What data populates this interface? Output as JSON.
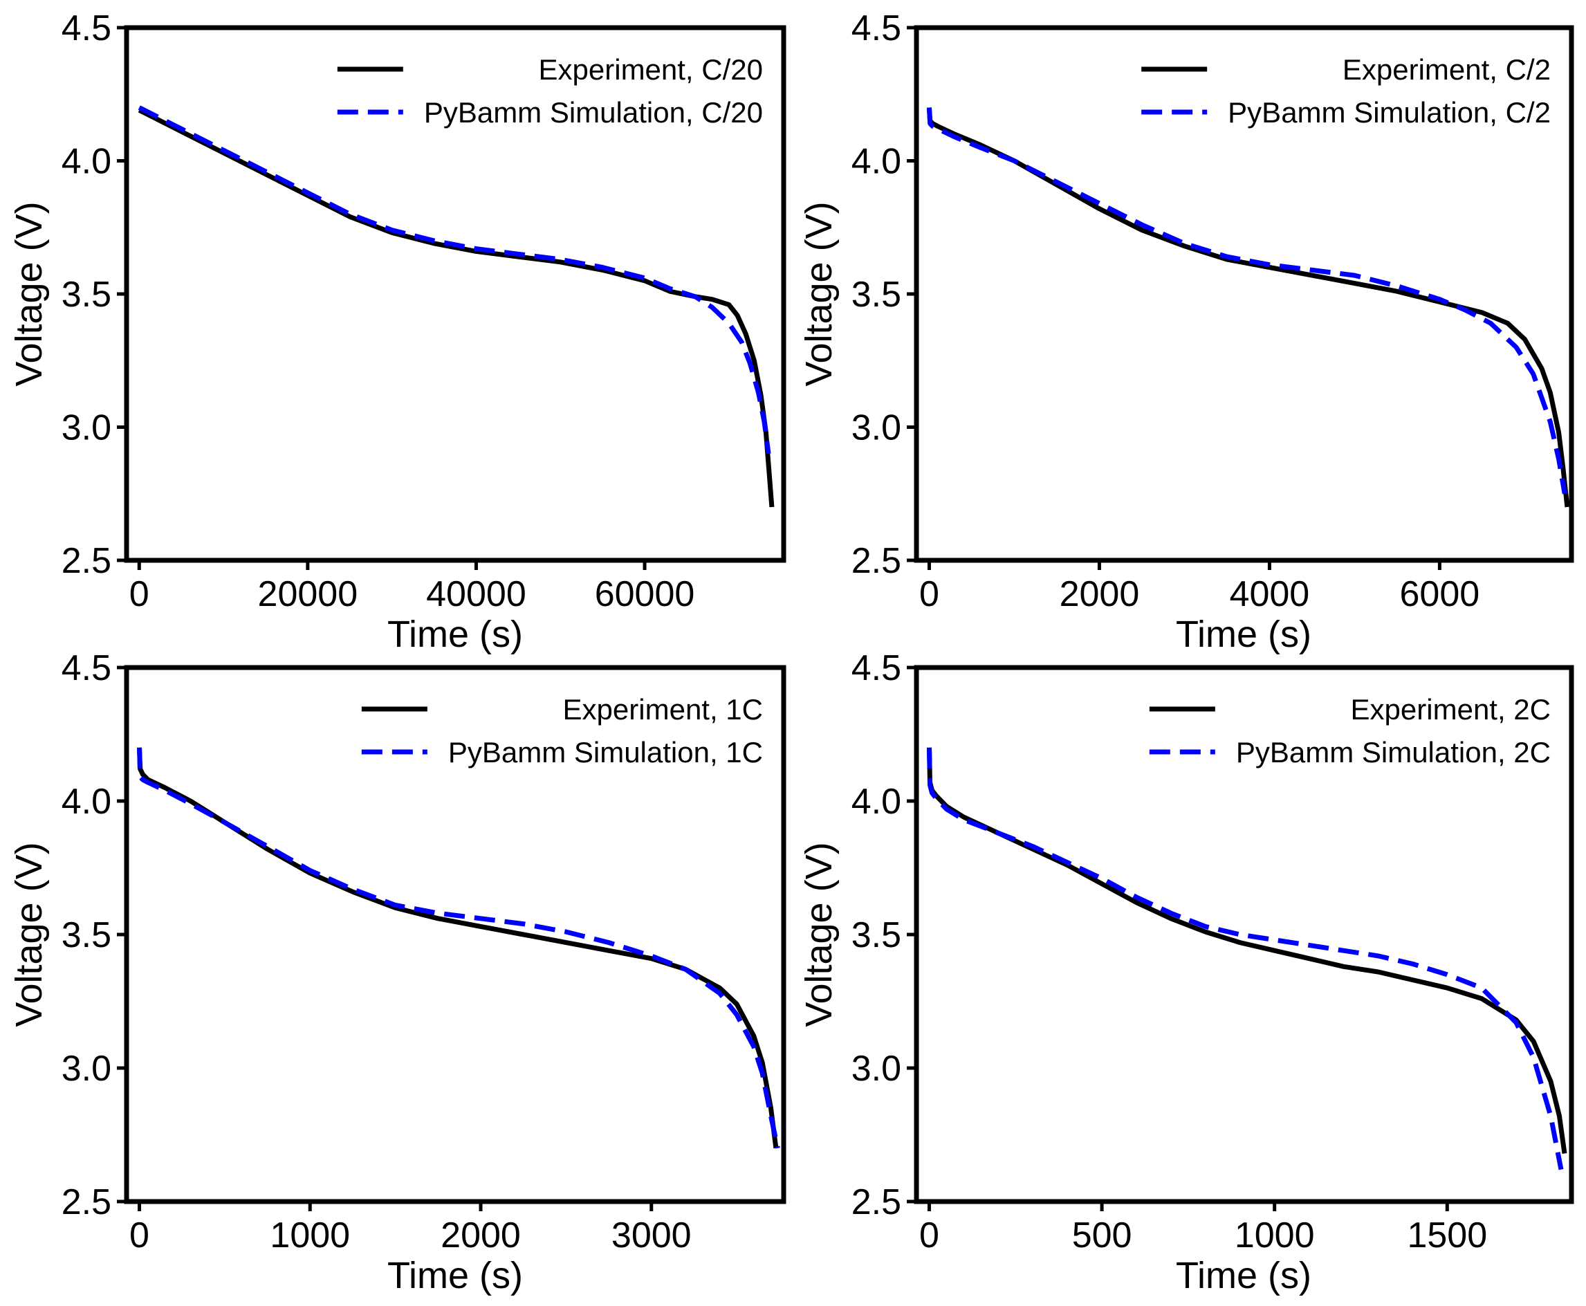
{
  "chart_data": [
    {
      "type": "line",
      "xlabel": "Time (s)",
      "ylabel": "Voltage (V)",
      "xlim": [
        -1500,
        76500
      ],
      "ylim": [
        2.5,
        4.5
      ],
      "xticks": [
        0,
        20000,
        40000,
        60000
      ],
      "yticks": [
        2.5,
        3.0,
        3.5,
        4.0,
        4.5
      ],
      "grid": false,
      "legend_position": "upper-right",
      "series": [
        {
          "name": "Experiment, C/20",
          "color": "#000000",
          "style": "solid",
          "x": [
            0,
            5000,
            10000,
            15000,
            20000,
            25000,
            30000,
            35000,
            40000,
            45000,
            50000,
            55000,
            60000,
            63000,
            66000,
            68000,
            70000,
            71000,
            72000,
            73000,
            73800,
            74400,
            74800,
            75100
          ],
          "y": [
            4.19,
            4.11,
            4.03,
            3.95,
            3.87,
            3.79,
            3.73,
            3.69,
            3.66,
            3.64,
            3.62,
            3.59,
            3.55,
            3.51,
            3.49,
            3.48,
            3.46,
            3.42,
            3.35,
            3.25,
            3.12,
            2.98,
            2.82,
            2.7
          ]
        },
        {
          "name": "PyBamm Simulation, C/20",
          "color": "#0000ff",
          "style": "dashed",
          "x": [
            0,
            5000,
            10000,
            15000,
            20000,
            25000,
            30000,
            35000,
            40000,
            45000,
            50000,
            55000,
            60000,
            63000,
            66000,
            68000,
            70000,
            71500,
            72500,
            73500,
            74200,
            74700
          ],
          "y": [
            4.2,
            4.12,
            4.04,
            3.96,
            3.88,
            3.8,
            3.74,
            3.7,
            3.67,
            3.65,
            3.63,
            3.6,
            3.56,
            3.52,
            3.49,
            3.45,
            3.39,
            3.32,
            3.24,
            3.13,
            3.02,
            2.9
          ]
        }
      ]
    },
    {
      "type": "line",
      "xlabel": "Time (s)",
      "ylabel": "Voltage (V)",
      "xlim": [
        -150,
        7550
      ],
      "ylim": [
        2.5,
        4.5
      ],
      "xticks": [
        0,
        2000,
        4000,
        6000
      ],
      "yticks": [
        2.5,
        3.0,
        3.5,
        4.0,
        4.5
      ],
      "grid": false,
      "legend_position": "upper-right",
      "series": [
        {
          "name": "Experiment, C/2",
          "color": "#000000",
          "style": "solid",
          "x": [
            0,
            10,
            40,
            100,
            300,
            600,
            1000,
            1500,
            2000,
            2500,
            3000,
            3500,
            4000,
            4500,
            5000,
            5500,
            6000,
            6500,
            6800,
            7000,
            7200,
            7300,
            7400,
            7450,
            7500
          ],
          "y": [
            4.2,
            4.15,
            4.14,
            4.13,
            4.1,
            4.06,
            4.0,
            3.91,
            3.82,
            3.74,
            3.68,
            3.63,
            3.6,
            3.57,
            3.54,
            3.51,
            3.47,
            3.43,
            3.39,
            3.33,
            3.22,
            3.13,
            2.98,
            2.85,
            2.7
          ]
        },
        {
          "name": "PyBamm Simulation, C/2",
          "color": "#0000ff",
          "style": "dashed",
          "x": [
            0,
            10,
            40,
            100,
            300,
            600,
            1000,
            1500,
            2000,
            2500,
            3000,
            3500,
            4000,
            4500,
            5000,
            5500,
            6000,
            6300,
            6600,
            6900,
            7100,
            7300,
            7400,
            7470
          ],
          "y": [
            4.2,
            4.14,
            4.13,
            4.12,
            4.09,
            4.05,
            4.0,
            3.92,
            3.84,
            3.76,
            3.69,
            3.64,
            3.61,
            3.59,
            3.57,
            3.53,
            3.48,
            3.44,
            3.39,
            3.3,
            3.2,
            3.02,
            2.88,
            2.75
          ]
        }
      ]
    },
    {
      "type": "line",
      "xlabel": "Time (s)",
      "ylabel": "Voltage (V)",
      "xlim": [
        -75,
        3775
      ],
      "ylim": [
        2.5,
        4.5
      ],
      "xticks": [
        0,
        1000,
        2000,
        3000
      ],
      "yticks": [
        2.5,
        3.0,
        3.5,
        4.0,
        4.5
      ],
      "grid": false,
      "legend_position": "upper-right",
      "series": [
        {
          "name": "Experiment, 1C",
          "color": "#000000",
          "style": "solid",
          "x": [
            0,
            5,
            20,
            50,
            150,
            300,
            500,
            750,
            1000,
            1250,
            1500,
            1750,
            2000,
            2250,
            2500,
            2750,
            3000,
            3200,
            3400,
            3500,
            3600,
            3650,
            3700,
            3730
          ],
          "y": [
            4.2,
            4.12,
            4.1,
            4.08,
            4.05,
            4.0,
            3.92,
            3.82,
            3.73,
            3.66,
            3.6,
            3.56,
            3.53,
            3.5,
            3.47,
            3.44,
            3.41,
            3.37,
            3.3,
            3.24,
            3.12,
            3.02,
            2.85,
            2.7
          ]
        },
        {
          "name": "PyBamm Simulation, 1C",
          "color": "#0000ff",
          "style": "dashed",
          "x": [
            0,
            5,
            20,
            50,
            150,
            300,
            500,
            750,
            1000,
            1250,
            1500,
            1750,
            2000,
            2250,
            2500,
            2750,
            3000,
            3200,
            3400,
            3500,
            3600,
            3650,
            3700,
            3740
          ],
          "y": [
            4.2,
            4.09,
            4.08,
            4.07,
            4.04,
            3.99,
            3.92,
            3.83,
            3.74,
            3.67,
            3.61,
            3.58,
            3.56,
            3.54,
            3.51,
            3.47,
            3.42,
            3.37,
            3.28,
            3.2,
            3.08,
            2.98,
            2.82,
            2.7
          ]
        }
      ]
    },
    {
      "type": "line",
      "xlabel": "Time (s)",
      "ylabel": "Voltage (V)",
      "xlim": [
        -37,
        1860
      ],
      "ylim": [
        2.5,
        4.5
      ],
      "xticks": [
        0,
        500,
        1000,
        1500
      ],
      "yticks": [
        2.5,
        3.0,
        3.5,
        4.0,
        4.5
      ],
      "grid": false,
      "legend_position": "upper-right",
      "series": [
        {
          "name": "Experiment, 2C",
          "color": "#000000",
          "style": "solid",
          "x": [
            0,
            2,
            8,
            20,
            50,
            100,
            200,
            300,
            400,
            500,
            600,
            700,
            800,
            900,
            1000,
            1100,
            1200,
            1300,
            1400,
            1500,
            1600,
            1700,
            1750,
            1800,
            1825,
            1840
          ],
          "y": [
            4.2,
            4.07,
            4.04,
            4.02,
            3.98,
            3.94,
            3.88,
            3.82,
            3.76,
            3.69,
            3.62,
            3.56,
            3.51,
            3.47,
            3.44,
            3.41,
            3.38,
            3.36,
            3.33,
            3.3,
            3.26,
            3.18,
            3.1,
            2.95,
            2.82,
            2.68
          ]
        },
        {
          "name": "PyBamm Simulation, 2C",
          "color": "#0000ff",
          "style": "dashed",
          "x": [
            0,
            2,
            8,
            20,
            50,
            100,
            200,
            300,
            400,
            500,
            600,
            700,
            800,
            900,
            1000,
            1100,
            1200,
            1300,
            1400,
            1500,
            1600,
            1700,
            1750,
            1800,
            1830
          ],
          "y": [
            4.2,
            4.06,
            4.03,
            4.01,
            3.97,
            3.93,
            3.88,
            3.83,
            3.77,
            3.71,
            3.64,
            3.58,
            3.53,
            3.5,
            3.48,
            3.46,
            3.44,
            3.42,
            3.39,
            3.35,
            3.3,
            3.17,
            3.04,
            2.82,
            2.62
          ]
        }
      ]
    }
  ]
}
